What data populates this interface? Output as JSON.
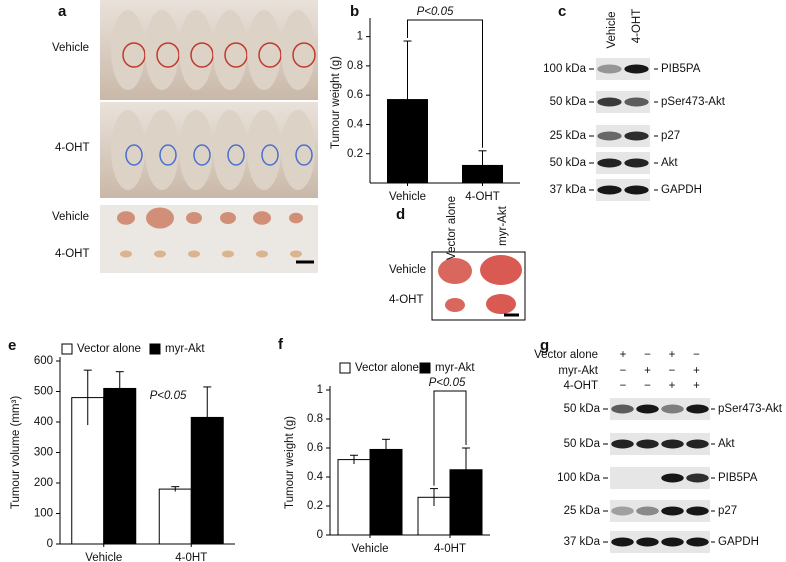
{
  "panel_a": {
    "letter": "a",
    "mouse_rows": [
      "Vehicle",
      "4-OHT"
    ],
    "tumour_rows": [
      "Vehicle",
      "4-OHT"
    ]
  },
  "panel_c": {
    "letter": "c",
    "columns": [
      "Vehicle",
      "4-OHT"
    ],
    "blots": [
      {
        "marker": "100 kDa",
        "protein": "PIB5PA"
      },
      {
        "marker": "50 kDa",
        "protein": "pSer473-Akt"
      },
      {
        "marker": "25 kDa",
        "protein": "p27"
      },
      {
        "marker": "50 kDa",
        "protein": "Akt"
      },
      {
        "marker": "37 kDa",
        "protein": "GAPDH"
      }
    ]
  },
  "panel_d": {
    "letter": "d",
    "columns": [
      "Vector alone",
      "myr-Akt"
    ],
    "rows": [
      "Vehicle",
      "4-OHT"
    ]
  },
  "panel_g": {
    "letter": "g",
    "conditions": [
      {
        "label": "Vector alone",
        "signs": [
          "+",
          "−",
          "+",
          "−"
        ]
      },
      {
        "label": "myr-Akt",
        "signs": [
          "−",
          "+",
          "−",
          "+"
        ]
      },
      {
        "label": "4-OHT",
        "signs": [
          "−",
          "−",
          "+",
          "+"
        ]
      }
    ],
    "blots": [
      {
        "marker": "50 kDa",
        "protein": "pSer473-Akt"
      },
      {
        "marker": "50 kDa",
        "protein": "Akt"
      },
      {
        "marker": "100 kDa",
        "protein": "PIB5PA"
      },
      {
        "marker": "25 kDa",
        "protein": "p27"
      },
      {
        "marker": "37 kDa",
        "protein": "GAPDH"
      }
    ]
  },
  "chart_data": [
    {
      "type": "bar",
      "panel": "b",
      "ylabel": "Tumour weight (g)",
      "categories": [
        "Vehicle",
        "4-OHT"
      ],
      "values": [
        0.57,
        0.12
      ],
      "errors": [
        0.4,
        0.1
      ],
      "color": "#000000",
      "ylim": [
        0,
        1.1
      ],
      "yticks": [
        0.2,
        0.4,
        0.6,
        0.8,
        1
      ],
      "annotation": "P<0.05"
    },
    {
      "type": "bar",
      "panel": "e",
      "ylabel": "Tumour volume (mm³)",
      "categories": [
        "Vehicle",
        "4-0HT"
      ],
      "series": [
        {
          "name": "Vector alone",
          "color": "#ffffff",
          "values": [
            480,
            180
          ],
          "errors": [
            90,
            8
          ]
        },
        {
          "name": "myr-Akt",
          "color": "#000000",
          "values": [
            510,
            415
          ],
          "errors": [
            55,
            100
          ]
        }
      ],
      "ylim": [
        0,
        600
      ],
      "yticks": [
        0,
        100,
        200,
        300,
        400,
        500,
        600
      ],
      "annotation": "P<0.05"
    },
    {
      "type": "bar",
      "panel": "f",
      "ylabel": "Tumour weight (g)",
      "categories": [
        "Vehicle",
        "4-0HT"
      ],
      "series": [
        {
          "name": "Vector alone",
          "color": "#ffffff",
          "values": [
            0.52,
            0.26
          ],
          "errors": [
            0.03,
            0.06
          ]
        },
        {
          "name": "myr-Akt",
          "color": "#000000",
          "values": [
            0.59,
            0.45
          ],
          "errors": [
            0.07,
            0.15
          ]
        }
      ],
      "ylim": [
        0,
        1
      ],
      "yticks": [
        0,
        0.2,
        0.4,
        0.6,
        0.8,
        1
      ],
      "annotation": "P<0.05"
    }
  ]
}
